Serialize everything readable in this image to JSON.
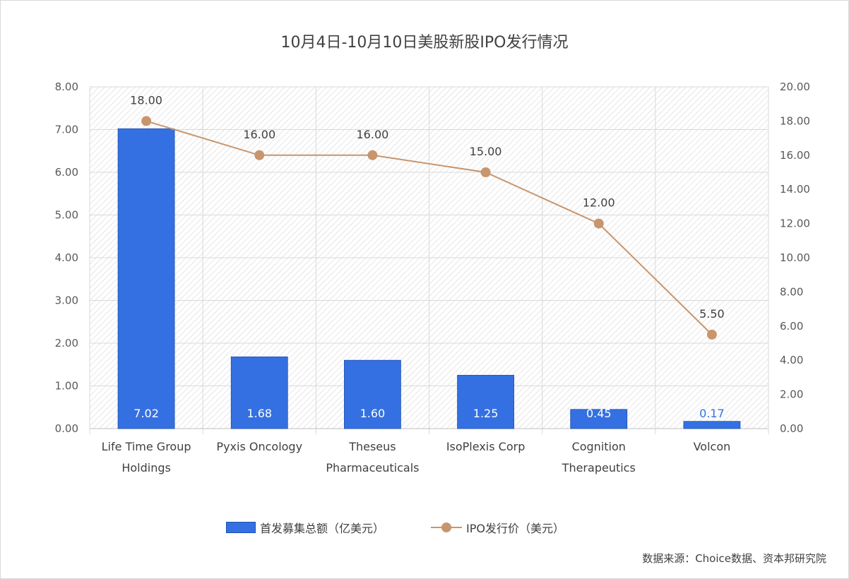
{
  "chart_data": {
    "type": "bar+line",
    "title": "10月4日-10月10日美股新股IPO发行情况",
    "categories": [
      [
        "Life Time Group",
        "Holdings"
      ],
      [
        "Pyxis Oncology"
      ],
      [
        "Theseus",
        "Pharmaceuticals"
      ],
      [
        "IsoPlexis Corp"
      ],
      [
        "Cognition",
        "Therapeutics"
      ],
      [
        "Volcon"
      ]
    ],
    "series": [
      {
        "name": "首发募集总额（亿美元）",
        "type": "bar",
        "axis": "left",
        "color": "#3470E2",
        "values": [
          7.02,
          1.68,
          1.6,
          1.25,
          0.45,
          0.17
        ],
        "labels": [
          "7.02",
          "1.68",
          "1.60",
          "1.25",
          "0.45",
          "0.17"
        ]
      },
      {
        "name": "IPO发行价（美元）",
        "type": "line",
        "axis": "right",
        "color": "#C8956C",
        "values": [
          18.0,
          16.0,
          16.0,
          15.0,
          12.0,
          5.5
        ],
        "labels": [
          "18.00",
          "16.00",
          "16.00",
          "15.00",
          "12.00",
          "5.50"
        ]
      }
    ],
    "ylim_left": [
      0,
      8
    ],
    "ylim_right": [
      0,
      20
    ],
    "yticks_left": [
      "0.00",
      "1.00",
      "2.00",
      "3.00",
      "4.00",
      "5.00",
      "6.00",
      "7.00",
      "8.00"
    ],
    "yticks_right": [
      "0.00",
      "2.00",
      "4.00",
      "6.00",
      "8.00",
      "10.00",
      "12.00",
      "14.00",
      "16.00",
      "18.00",
      "20.00"
    ],
    "grid": true,
    "legend_position": "bottom"
  },
  "source_note": "数据来源：Choice数据、资本邦研究院"
}
